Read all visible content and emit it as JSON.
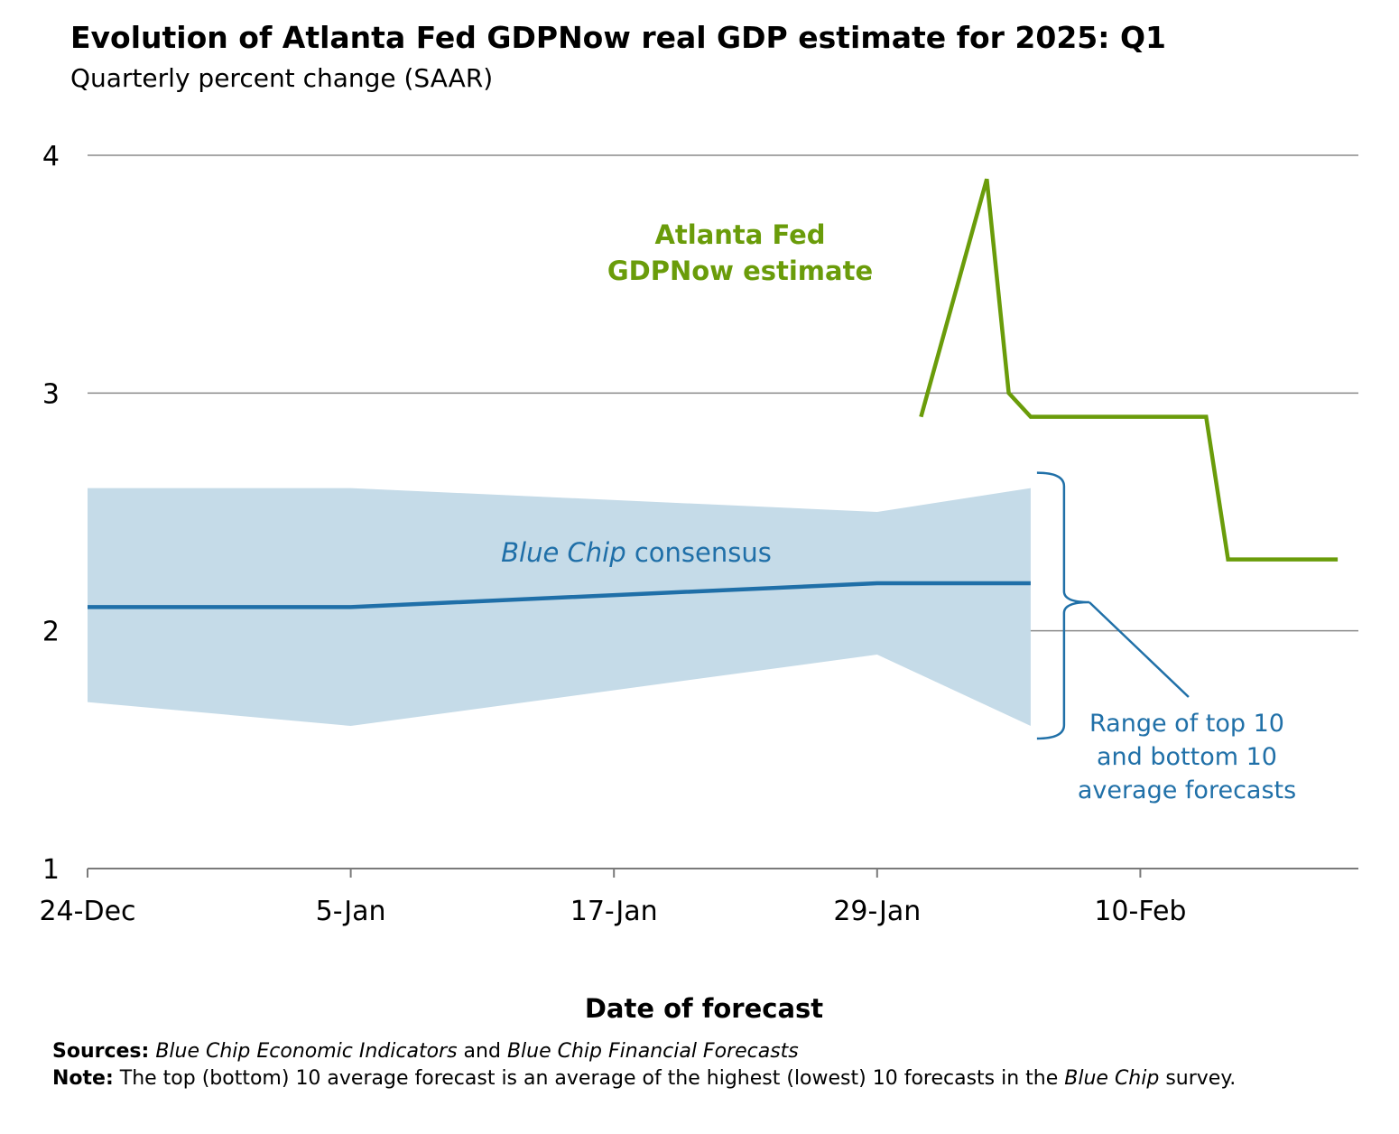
{
  "title": "Evolution of Atlanta Fed GDPNow real GDP estimate for 2025: Q1",
  "subtitle": "Quarterly percent change (SAAR)",
  "annotations": {
    "gdpnow_line1": "Atlanta Fed",
    "gdpnow_line2": "GDPNow estimate",
    "bluechip_italic": "Blue Chip",
    "bluechip_rest": " consensus",
    "range_line1": "Range of top 10",
    "range_line2": "and bottom 10",
    "range_line3": "average forecasts"
  },
  "colors": {
    "gdpnow": "#6a9c0a",
    "consensus": "#1f6fa8",
    "range_fill": "#c5dbe8",
    "annotation_blue": "#2070a8",
    "grid": "#8a8a8a"
  },
  "chart_data": {
    "type": "line",
    "title": "Evolution of Atlanta Fed GDPNow real GDP estimate for 2025: Q1",
    "subtitle": "Quarterly percent change (SAAR)",
    "xlabel": "Date of forecast",
    "ylabel": "",
    "ylim": [
      1,
      4
    ],
    "yticks": [
      1,
      2,
      3,
      4
    ],
    "xlim": [
      "2024-12-24",
      "2025-02-21"
    ],
    "xticks": [
      "2024-12-24",
      "2025-01-05",
      "2025-01-17",
      "2025-01-29",
      "2025-02-10"
    ],
    "xtick_labels": [
      "24-Dec",
      "5-Jan",
      "17-Jan",
      "29-Jan",
      "10-Feb"
    ],
    "grid": true,
    "series": [
      {
        "name": "Atlanta Fed GDPNow estimate",
        "type": "line",
        "x": [
          "2025-01-31",
          "2025-02-03",
          "2025-02-04",
          "2025-02-05",
          "2025-02-13",
          "2025-02-14",
          "2025-02-19"
        ],
        "values": [
          2.9,
          3.9,
          3.0,
          2.9,
          2.9,
          2.3,
          2.3
        ]
      },
      {
        "name": "Blue Chip consensus",
        "type": "line",
        "x": [
          "2024-12-24",
          "2025-01-05",
          "2025-01-29",
          "2025-02-05"
        ],
        "values": [
          2.1,
          2.1,
          2.2,
          2.2
        ]
      },
      {
        "name": "Range of top 10 and bottom 10 average forecasts",
        "type": "area",
        "x": [
          "2024-12-24",
          "2025-01-05",
          "2025-01-29",
          "2025-02-05"
        ],
        "upper": [
          2.6,
          2.6,
          2.5,
          2.6
        ],
        "lower": [
          1.7,
          1.6,
          1.9,
          1.6
        ]
      }
    ]
  },
  "notes": {
    "sources_label": "Sources:",
    "sources_part1": "Blue Chip Economic Indicators",
    "sources_and": " and ",
    "sources_part2": "Blue Chip Financial Forecasts",
    "note_label": "Note:",
    "note_text": " The top (bottom) 10 average forecast is an average of the highest (lowest) 10 forecasts in the ",
    "note_italic": "Blue Chip",
    "note_end": " survey."
  }
}
